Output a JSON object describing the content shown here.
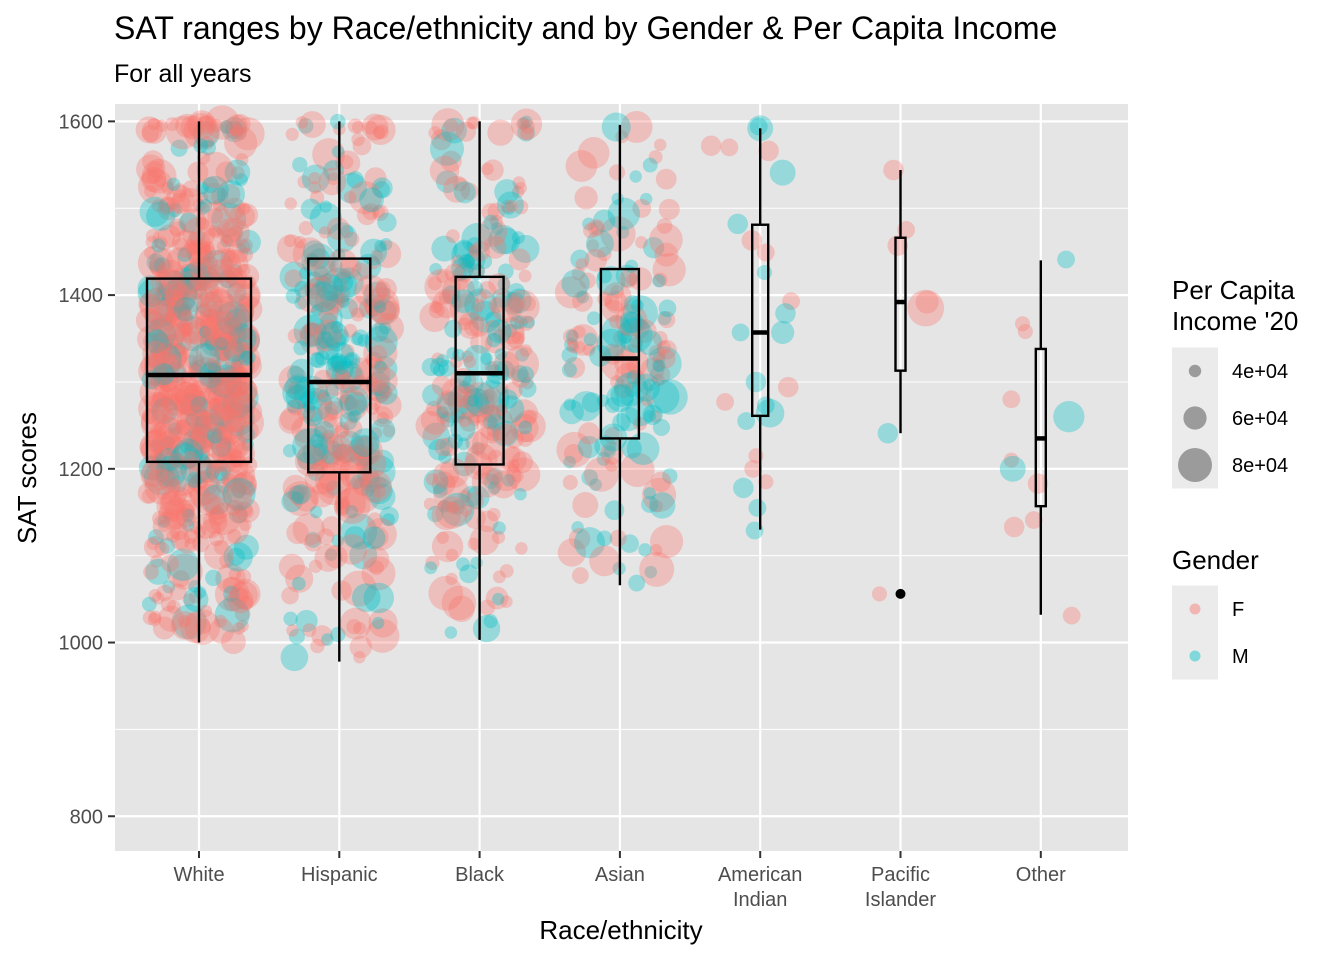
{
  "chart_data": {
    "type": "scatter",
    "overlay": "boxplot",
    "title": "SAT ranges by Race/ethnicity and by Gender & Per Capita Income",
    "subtitle": "For all years",
    "xlabel": "Race/ethnicity",
    "ylabel": "SAT scores",
    "ylim": [
      760,
      1620
    ],
    "y_ticks": [
      "800",
      "1000",
      "1200",
      "1400",
      "1600"
    ],
    "grid": true,
    "panel_bg": "#e5e5e5",
    "categories": [
      {
        "key": "white",
        "label": [
          "White"
        ]
      },
      {
        "key": "hispanic",
        "label": [
          "Hispanic"
        ]
      },
      {
        "key": "black",
        "label": [
          "Black"
        ]
      },
      {
        "key": "asian",
        "label": [
          "Asian"
        ]
      },
      {
        "key": "american_indian",
        "label": [
          "American",
          "Indian"
        ]
      },
      {
        "key": "pacific_islander",
        "label": [
          "Pacific",
          "Islander"
        ]
      },
      {
        "key": "other",
        "label": [
          "Other"
        ]
      }
    ],
    "boxplots": [
      {
        "category": "White",
        "whisker_low": 1000,
        "q1": 1208,
        "median": 1308,
        "q3": 1419,
        "whisker_high": 1600
      },
      {
        "category": "Hispanic",
        "whisker_low": 978,
        "q1": 1196,
        "median": 1300,
        "q3": 1442,
        "whisker_high": 1600
      },
      {
        "category": "Black",
        "whisker_low": 1003,
        "q1": 1205,
        "median": 1310,
        "q3": 1421,
        "whisker_high": 1600
      },
      {
        "category": "Asian",
        "whisker_low": 1066,
        "q1": 1235,
        "median": 1327,
        "q3": 1430,
        "whisker_high": 1596
      },
      {
        "category": "American Indian",
        "whisker_low": 1130,
        "q1": 1261,
        "median": 1357,
        "q3": 1481,
        "whisker_high": 1592
      },
      {
        "category": "Pacific Islander",
        "whisker_low": 1241,
        "q1": 1313,
        "median": 1392,
        "q3": 1466,
        "whisker_high": 1544,
        "outliers": [
          1056
        ]
      },
      {
        "category": "Other",
        "whisker_low": 1032,
        "q1": 1157,
        "median": 1235,
        "q3": 1338,
        "whisker_high": 1440
      }
    ],
    "series": [
      {
        "name": "F",
        "color": "#f8766d"
      },
      {
        "name": "M",
        "color": "#00bfc4"
      }
    ],
    "sample_points": [
      {
        "category": "American Indian",
        "x_offset": -0.35,
        "y": 1572,
        "gender": "F",
        "income": 55000
      },
      {
        "category": "American Indian",
        "x_offset": -0.22,
        "y": 1570,
        "gender": "F",
        "income": 50000
      },
      {
        "category": "American Indian",
        "x_offset": 0.0,
        "y": 1592,
        "gender": "M",
        "income": 65000
      },
      {
        "category": "American Indian",
        "x_offset": -0.01,
        "y": 1594,
        "gender": "M",
        "income": 50000
      },
      {
        "category": "American Indian",
        "x_offset": 0.06,
        "y": 1566,
        "gender": "F",
        "income": 55000
      },
      {
        "category": "American Indian",
        "x_offset": 0.16,
        "y": 1541,
        "gender": "M",
        "income": 65000
      },
      {
        "category": "American Indian",
        "x_offset": -0.16,
        "y": 1482,
        "gender": "M",
        "income": 55000
      },
      {
        "category": "American Indian",
        "x_offset": -0.06,
        "y": 1463,
        "gender": "F",
        "income": 55000
      },
      {
        "category": "American Indian",
        "x_offset": 0.04,
        "y": 1449,
        "gender": "F",
        "income": 50000
      },
      {
        "category": "American Indian",
        "x_offset": 0.03,
        "y": 1426,
        "gender": "M",
        "income": 45000
      },
      {
        "category": "American Indian",
        "x_offset": 0.22,
        "y": 1393,
        "gender": "F",
        "income": 50000
      },
      {
        "category": "American Indian",
        "x_offset": 0.18,
        "y": 1379,
        "gender": "M",
        "income": 55000
      },
      {
        "category": "American Indian",
        "x_offset": -0.14,
        "y": 1357,
        "gender": "M",
        "income": 50000
      },
      {
        "category": "American Indian",
        "x_offset": 0.16,
        "y": 1357,
        "gender": "M",
        "income": 60000
      },
      {
        "category": "American Indian",
        "x_offset": -0.03,
        "y": 1300,
        "gender": "M",
        "income": 55000
      },
      {
        "category": "American Indian",
        "x_offset": 0.2,
        "y": 1294,
        "gender": "F",
        "income": 55000
      },
      {
        "category": "American Indian",
        "x_offset": -0.25,
        "y": 1277,
        "gender": "F",
        "income": 50000
      },
      {
        "category": "American Indian",
        "x_offset": 0.04,
        "y": 1273,
        "gender": "M",
        "income": 50000
      },
      {
        "category": "American Indian",
        "x_offset": 0.07,
        "y": 1264,
        "gender": "M",
        "income": 70000
      },
      {
        "category": "American Indian",
        "x_offset": -0.1,
        "y": 1255,
        "gender": "M",
        "income": 50000
      },
      {
        "category": "American Indian",
        "x_offset": -0.03,
        "y": 1215,
        "gender": "F",
        "income": 45000
      },
      {
        "category": "American Indian",
        "x_offset": -0.05,
        "y": 1200,
        "gender": "F",
        "income": 50000
      },
      {
        "category": "American Indian",
        "x_offset": 0.04,
        "y": 1185,
        "gender": "F",
        "income": 45000
      },
      {
        "category": "American Indian",
        "x_offset": -0.12,
        "y": 1178,
        "gender": "M",
        "income": 55000
      },
      {
        "category": "American Indian",
        "x_offset": -0.02,
        "y": 1155,
        "gender": "M",
        "income": 50000
      },
      {
        "category": "American Indian",
        "x_offset": -0.04,
        "y": 1129,
        "gender": "M",
        "income": 50000
      },
      {
        "category": "Pacific Islander",
        "x_offset": -0.05,
        "y": 1544,
        "gender": "F",
        "income": 55000
      },
      {
        "category": "Pacific Islander",
        "x_offset": 0.04,
        "y": 1475,
        "gender": "F",
        "income": 50000
      },
      {
        "category": "Pacific Islander",
        "x_offset": -0.02,
        "y": 1457,
        "gender": "F",
        "income": 55000
      },
      {
        "category": "Pacific Islander",
        "x_offset": 0.18,
        "y": 1385,
        "gender": "F",
        "income": 85000
      },
      {
        "category": "Pacific Islander",
        "x_offset": 0.19,
        "y": 1392,
        "gender": "F",
        "income": 60000
      },
      {
        "category": "Pacific Islander",
        "x_offset": -0.09,
        "y": 1241,
        "gender": "M",
        "income": 55000
      },
      {
        "category": "Pacific Islander",
        "x_offset": -0.15,
        "y": 1056,
        "gender": "F",
        "income": 45000
      },
      {
        "category": "Other",
        "x_offset": 0.18,
        "y": 1441,
        "gender": "M",
        "income": 50000
      },
      {
        "category": "Other",
        "x_offset": -0.13,
        "y": 1367,
        "gender": "F",
        "income": 45000
      },
      {
        "category": "Other",
        "x_offset": -0.11,
        "y": 1358,
        "gender": "F",
        "income": 45000
      },
      {
        "category": "Other",
        "x_offset": -0.21,
        "y": 1280,
        "gender": "F",
        "income": 50000
      },
      {
        "category": "Other",
        "x_offset": 0.2,
        "y": 1260,
        "gender": "M",
        "income": 75000
      },
      {
        "category": "Other",
        "x_offset": -0.21,
        "y": 1210,
        "gender": "F",
        "income": 45000
      },
      {
        "category": "Other",
        "x_offset": -0.2,
        "y": 1200,
        "gender": "M",
        "income": 65000
      },
      {
        "category": "Other",
        "x_offset": -0.02,
        "y": 1183,
        "gender": "F",
        "income": 55000
      },
      {
        "category": "Other",
        "x_offset": -0.19,
        "y": 1133,
        "gender": "F",
        "income": 55000
      },
      {
        "category": "Other",
        "x_offset": -0.05,
        "y": 1141,
        "gender": "F",
        "income": 50000
      },
      {
        "category": "Other",
        "x_offset": 0.22,
        "y": 1031,
        "gender": "F",
        "income": 50000
      }
    ],
    "legend": {
      "placement": "right",
      "size": {
        "title": [
          "Per Capita",
          "Income '20"
        ],
        "entries": [
          {
            "label": "4e+04",
            "value": 40000
          },
          {
            "label": "6e+04",
            "value": 60000
          },
          {
            "label": "8e+04",
            "value": 80000
          }
        ]
      },
      "color": {
        "title": "Gender",
        "entries": [
          {
            "label": "F",
            "color": "#f8766d"
          },
          {
            "label": "M",
            "color": "#00bfc4"
          }
        ]
      }
    }
  }
}
